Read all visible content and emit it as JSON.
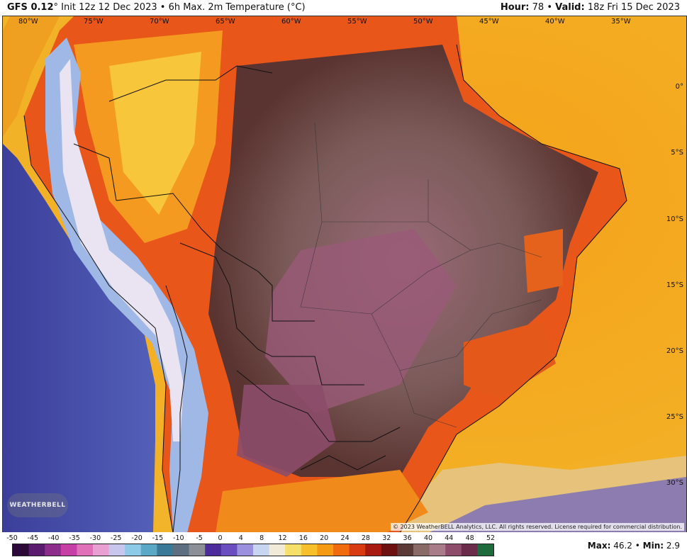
{
  "header": {
    "model": "GFS 0.12",
    "degree": "°",
    "init": "Init 12z 12 Dec 2023",
    "sep": "•",
    "product": "6h Max. 2m Temperature (°C)",
    "hour_label": "Hour",
    "hour_value": "78",
    "valid_label": "Valid",
    "valid_value": "18z Fri 15 Dec 2023"
  },
  "map": {
    "longitude_labels": [
      "80°W",
      "75°W",
      "70°W",
      "65°W",
      "60°W",
      "55°W",
      "50°W",
      "45°W",
      "40°W",
      "35°W"
    ],
    "latitude_labels": [
      "0°",
      "5°S",
      "10°S",
      "15°S",
      "20°S",
      "25°S",
      "30°S"
    ],
    "copyright": "© 2023 WeatherBELL Analytics, LLC. All rights reserved. License required for commercial distribution.",
    "logo": "WEATHERBELL"
  },
  "colorbar": {
    "ticks": [
      "-50",
      "-45",
      "-40",
      "-35",
      "-30",
      "-25",
      "-20",
      "-15",
      "-10",
      "-5",
      "0",
      "4",
      "8",
      "12",
      "16",
      "20",
      "24",
      "28",
      "32",
      "36",
      "40",
      "44",
      "48",
      "52"
    ],
    "colors": [
      "#2b0a3a",
      "#5a1a6e",
      "#8c2d8c",
      "#c53fa4",
      "#e070b8",
      "#e8a0d2",
      "#c9c6ee",
      "#8ec9e8",
      "#5aa8c6",
      "#3a7a96",
      "#5b6f80",
      "#8c8f96",
      "#4b2c9a",
      "#6a4ec0",
      "#9b8fe0",
      "#c7d6f0",
      "#f2ead8",
      "#f5e06a",
      "#f7c02a",
      "#f59a12",
      "#f06a10",
      "#d83a12",
      "#a81a10",
      "#6e1010",
      "#5a3a36",
      "#8a6a66",
      "#a87c88",
      "#8c4c6a",
      "#6a2a4a",
      "#1d6a3a"
    ]
  },
  "stats": {
    "max_label": "Max",
    "max_value": "46.2",
    "sep": "•",
    "min_label": "Min",
    "min_value": "2.9"
  }
}
